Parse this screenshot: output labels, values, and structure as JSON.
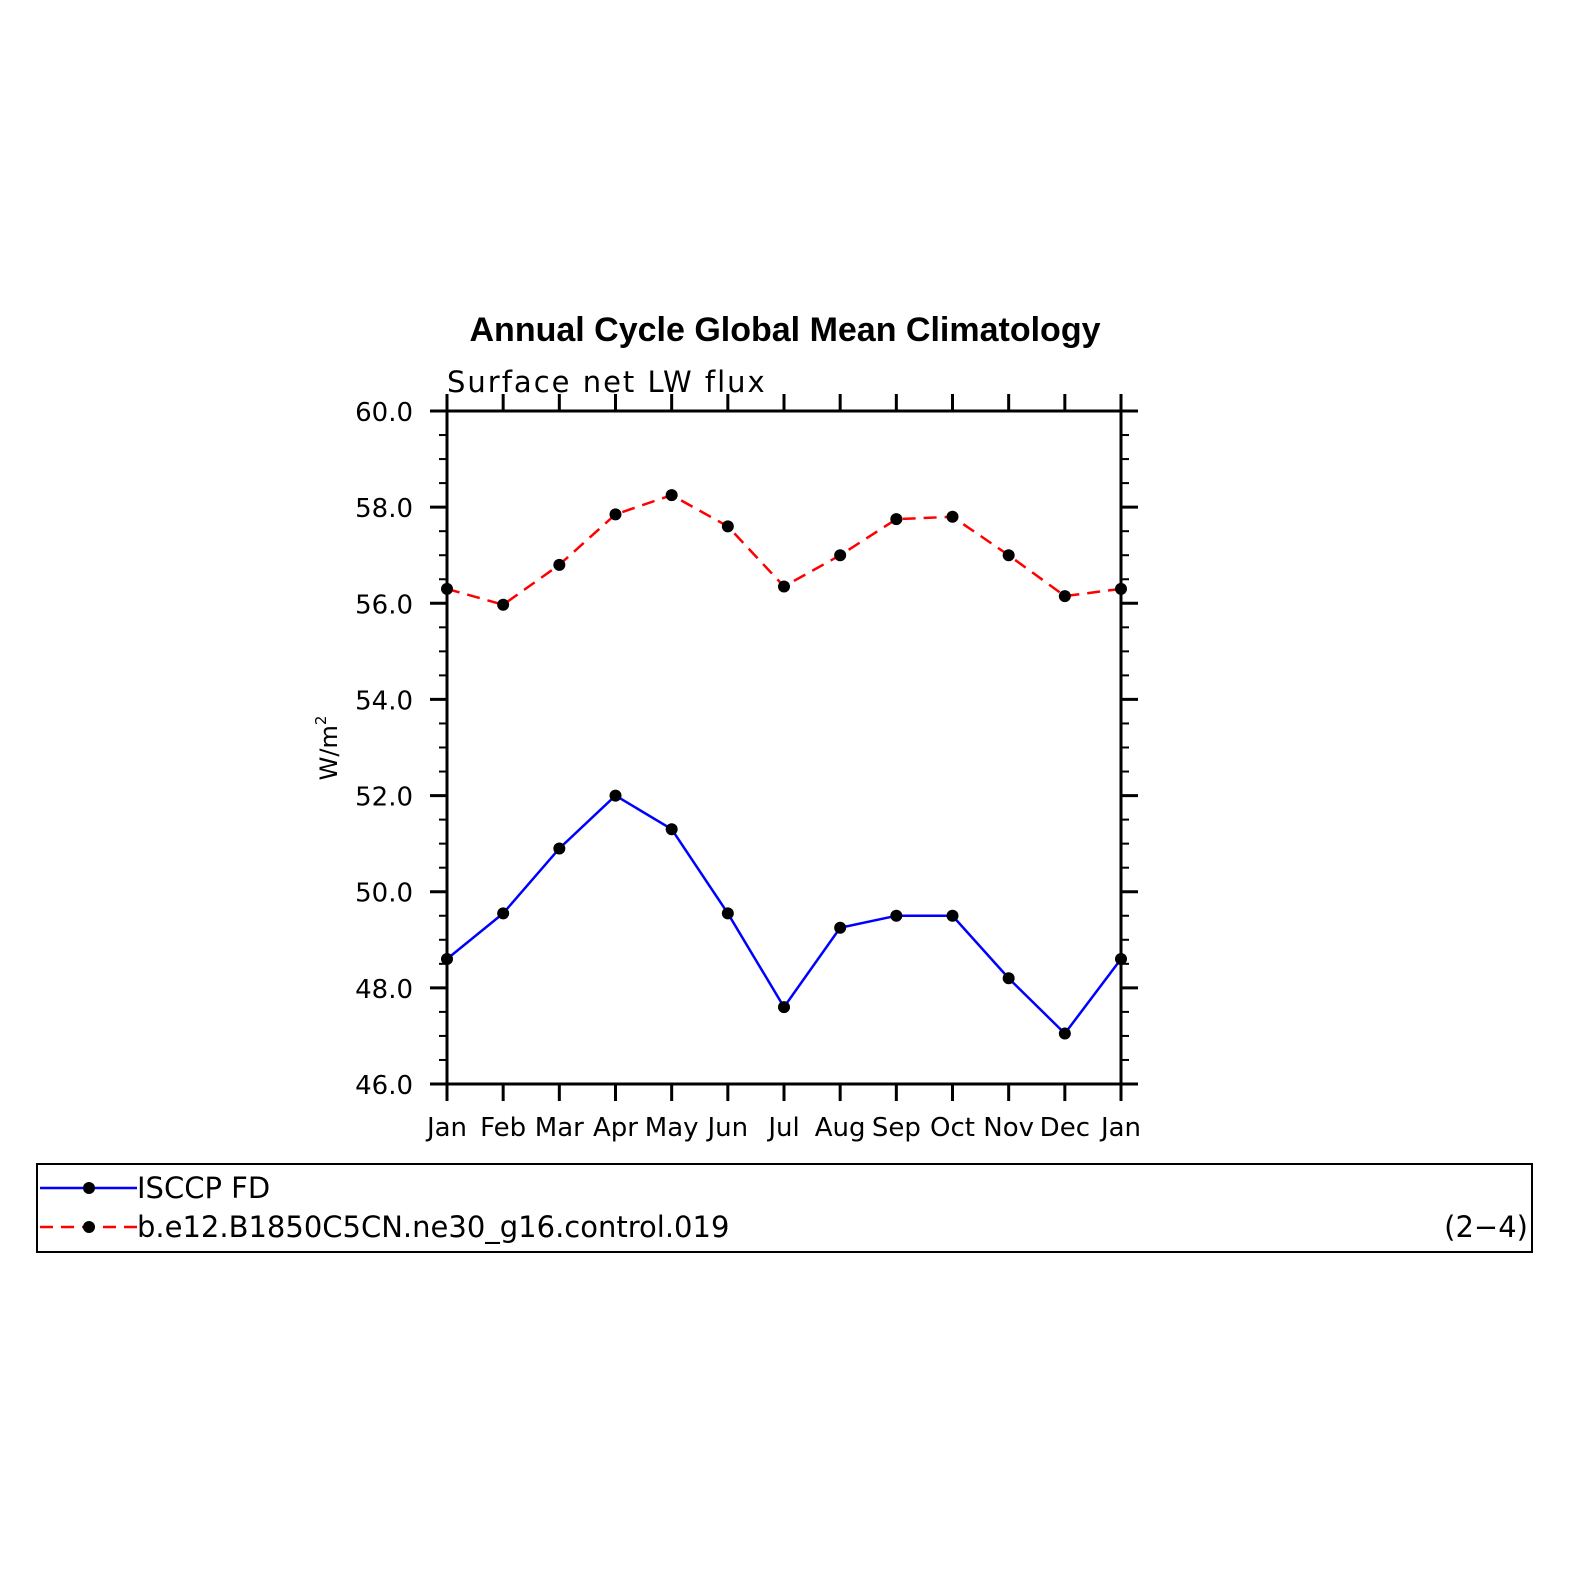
{
  "chart_data": {
    "type": "line",
    "title": "Annual Cycle Global Mean Climatology",
    "subtitle": "Surface net LW flux",
    "ylabel": "W/m",
    "ylabel_sup": "2",
    "xlabel": "",
    "categories": [
      "Jan",
      "Feb",
      "Mar",
      "Apr",
      "May",
      "Jun",
      "Jul",
      "Aug",
      "Sep",
      "Oct",
      "Nov",
      "Dec",
      "Jan"
    ],
    "ylim": [
      46.0,
      60.0
    ],
    "yticks": [
      "46.0",
      "48.0",
      "50.0",
      "52.0",
      "54.0",
      "56.0",
      "58.0",
      "60.0"
    ],
    "yminor_step": 0.5,
    "grid": false,
    "legend_position": "bottom",
    "series": [
      {
        "name": "ISCCP FD",
        "color": "#0000ff",
        "dash": "solid",
        "values": [
          48.6,
          49.55,
          50.9,
          52.0,
          51.3,
          49.55,
          47.6,
          49.25,
          49.5,
          49.5,
          48.2,
          47.05,
          48.6
        ]
      },
      {
        "name": "b.e12.B1850C5CN.ne30_g16.control.019",
        "color": "#ff0000",
        "dash": "dashed",
        "values": [
          56.3,
          55.97,
          56.8,
          57.85,
          58.25,
          57.6,
          56.35,
          57.0,
          57.75,
          57.8,
          57.0,
          56.15,
          56.3
        ]
      }
    ],
    "panel_label": "(2−4)"
  }
}
